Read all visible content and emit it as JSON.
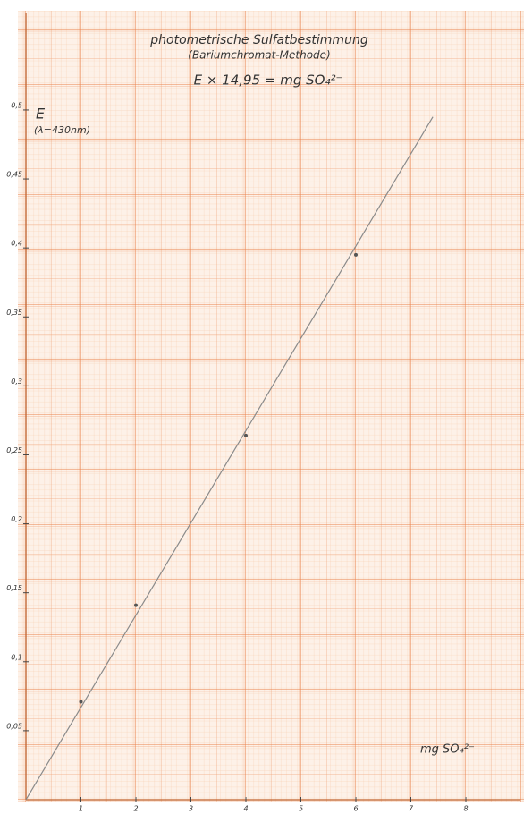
{
  "chart_data": {
    "type": "scatter",
    "title": "photometrische Sulfatbestimmung",
    "subtitle": "(Bariumchromat-Methode)",
    "formula": "E × 14,95 = mg SO₄²⁻",
    "y_label": "E",
    "y_label_note": "(λ=430nm)",
    "x_label": "mg SO₄²⁻",
    "xlim": [
      0,
      9
    ],
    "ylim": [
      0,
      0.57
    ],
    "xticks": [
      1,
      2,
      3,
      4,
      5,
      6,
      7,
      8
    ],
    "yticks": [
      {
        "value": 0.05,
        "label": "0,05"
      },
      {
        "value": 0.1,
        "label": "0,1"
      },
      {
        "value": 0.15,
        "label": "0,15"
      },
      {
        "value": 0.2,
        "label": "0,2"
      },
      {
        "value": 0.25,
        "label": "0,25"
      },
      {
        "value": 0.3,
        "label": "0,3"
      },
      {
        "value": 0.35,
        "label": "0,35"
      },
      {
        "value": 0.4,
        "label": "0,4"
      },
      {
        "value": 0.45,
        "label": "0,45"
      },
      {
        "value": 0.5,
        "label": "0,5"
      }
    ],
    "points": {
      "color": "#555555",
      "x": [
        1,
        2,
        4,
        6
      ],
      "values": [
        0.071,
        0.141,
        0.264,
        0.395
      ]
    },
    "fit_line": {
      "color": "#8a8a8a",
      "x": [
        0,
        7.4
      ],
      "values": [
        0,
        0.495
      ]
    },
    "grid": true
  }
}
